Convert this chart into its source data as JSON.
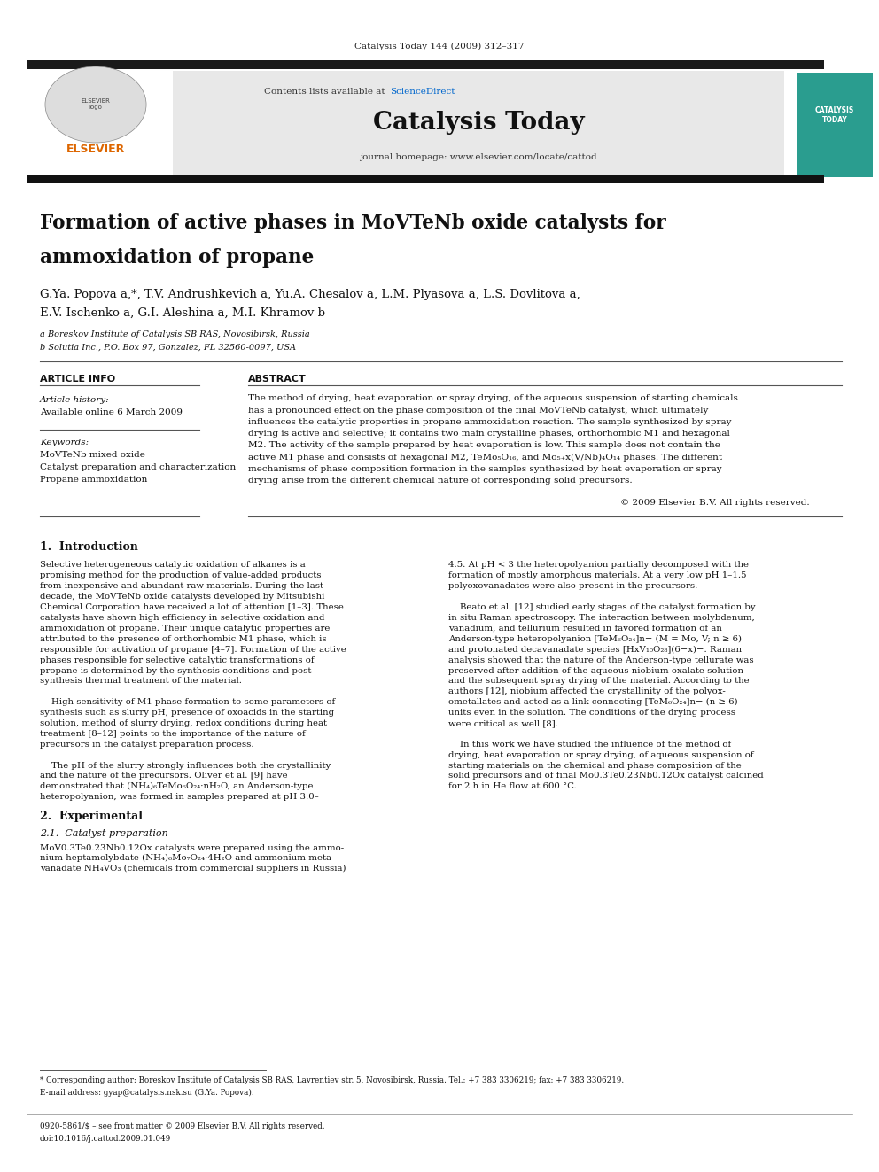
{
  "page_width": 9.92,
  "page_height": 13.23,
  "background_color": "#ffffff",
  "journal_ref": "Catalysis Today 144 (2009) 312–317",
  "header_bg": "#e8e8e8",
  "contents_text": "Contents lists available at",
  "sciencedirect_text": "ScienceDirect",
  "sciencedirect_color": "#0066cc",
  "journal_name": "Catalysis Today",
  "journal_homepage": "journal homepage: www.elsevier.com/locate/cattod",
  "header_bar_color": "#1a1a1a",
  "article_title_line1": "Formation of active phases in MoVTeNb oxide catalysts for",
  "article_title_line2": "ammoxidation of propane",
  "authors": "G.Ya. Popova a,*, T.V. Andrushkevich a, Yu.A. Chesalov a, L.M. Plyasova a, L.S. Dovlitova a,",
  "authors2": "E.V. Ischenko a, G.I. Aleshina a, M.I. Khramov b",
  "affil_a": "a Boreskov Institute of Catalysis SB RAS, Novosibirsk, Russia",
  "affil_b": "b Solutia Inc., P.O. Box 97, Gonzalez, FL 32560-0097, USA",
  "section_article_info": "ARTICLE INFO",
  "section_abstract": "ABSTRACT",
  "article_history_label": "Article history:",
  "available_online": "Available online 6 March 2009",
  "keywords_label": "Keywords:",
  "keyword1": "MoVTeNb mixed oxide",
  "keyword2": "Catalyst preparation and characterization",
  "keyword3": "Propane ammoxidation",
  "copyright_text": "© 2009 Elsevier B.V. All rights reserved.",
  "intro_heading": "1.  Introduction",
  "section2_heading": "2.  Experimental",
  "section21_heading": "2.1.  Catalyst preparation",
  "footnote_corresponding": "* Corresponding author: Boreskov Institute of Catalysis SB RAS, Lavrentiev str. 5, Novosibirsk, Russia. Tel.: +7 383 3306219; fax: +7 383 3306219.",
  "footnote_email": "E-mail address: gyap@catalysis.nsk.su (G.Ya. Popova).",
  "footer_text1": "0920-5861/$ – see front matter © 2009 Elsevier B.V. All rights reserved.",
  "footer_text2": "doi:10.1016/j.cattod.2009.01.049",
  "abstract_lines": [
    "The method of drying, heat evaporation or spray drying, of the aqueous suspension of starting chemicals",
    "has a pronounced effect on the phase composition of the final MoVTeNb catalyst, which ultimately",
    "influences the catalytic properties in propane ammoxidation reaction. The sample synthesized by spray",
    "drying is active and selective; it contains two main crystalline phases, orthorhombic M1 and hexagonal",
    "M2. The activity of the sample prepared by heat evaporation is low. This sample does not contain the",
    "active M1 phase and consists of hexagonal M2, TeMo₅O₁₆, and Mo₅₊x(V/Nb)₄O₁₄ phases. The different",
    "mechanisms of phase composition formation in the samples synthesized by heat evaporation or spray",
    "drying arise from the different chemical nature of corresponding solid precursors."
  ],
  "intro_col1": [
    "Selective heterogeneous catalytic oxidation of alkanes is a",
    "promising method for the production of value-added products",
    "from inexpensive and abundant raw materials. During the last",
    "decade, the MoVTeNb oxide catalysts developed by Mitsubishi",
    "Chemical Corporation have received a lot of attention [1–3]. These",
    "catalysts have shown high efficiency in selective oxidation and",
    "ammoxidation of propane. Their unique catalytic properties are",
    "attributed to the presence of orthorhombic M1 phase, which is",
    "responsible for activation of propane [4–7]. Formation of the active",
    "phases responsible for selective catalytic transformations of",
    "propane is determined by the synthesis conditions and post-",
    "synthesis thermal treatment of the material.",
    "",
    "    High sensitivity of M1 phase formation to some parameters of",
    "synthesis such as slurry pH, presence of oxoacids in the starting",
    "solution, method of slurry drying, redox conditions during heat",
    "treatment [8–12] points to the importance of the nature of",
    "precursors in the catalyst preparation process.",
    "",
    "    The pH of the slurry strongly influences both the crystallinity",
    "and the nature of the precursors. Oliver et al. [9] have",
    "demonstrated that (NH₄)₆TeMo₆O₂₄·nH₂O, an Anderson-type",
    "heteropolyanion, was formed in samples prepared at pH 3.0–"
  ],
  "intro_col2": [
    "4.5. At pH < 3 the heteropolyanion partially decomposed with the",
    "formation of mostly amorphous materials. At a very low pH 1–1.5",
    "polyoxovanadates were also present in the precursors.",
    "",
    "    Beato et al. [12] studied early stages of the catalyst formation by",
    "in situ Raman spectroscopy. The interaction between molybdenum,",
    "vanadium, and tellurium resulted in favored formation of an",
    "Anderson-type heteropolyanion [TeM₆O₂₄]n− (M = Mo, V; n ≥ 6)",
    "and protonated decavanadate species [HxV₁₀O₂₈](6−x)−. Raman",
    "analysis showed that the nature of the Anderson-type tellurate was",
    "preserved after addition of the aqueous niobium oxalate solution",
    "and the subsequent spray drying of the material. According to the",
    "authors [12], niobium affected the crystallinity of the polyox-",
    "ometallates and acted as a link connecting [TeM₆O₂₄]n− (n ≥ 6)",
    "units even in the solution. The conditions of the drying process",
    "were critical as well [8].",
    "",
    "    In this work we have studied the influence of the method of",
    "drying, heat evaporation or spray drying, of aqueous suspension of",
    "starting materials on the chemical and phase composition of the",
    "solid precursors and of final Mo0.3Te0.23Nb0.12Ox catalyst calcined",
    "for 2 h in He flow at 600 °C."
  ],
  "sec21_lines": [
    "MoV0.3Te0.23Nb0.12Ox catalysts were prepared using the ammo-",
    "nium heptamolybdate (NH₄)₆Mo₇O₂₄·4H₂O and ammonium meta-",
    "vanadate NH₄VO₃ (chemicals from commercial suppliers in Russia)"
  ]
}
